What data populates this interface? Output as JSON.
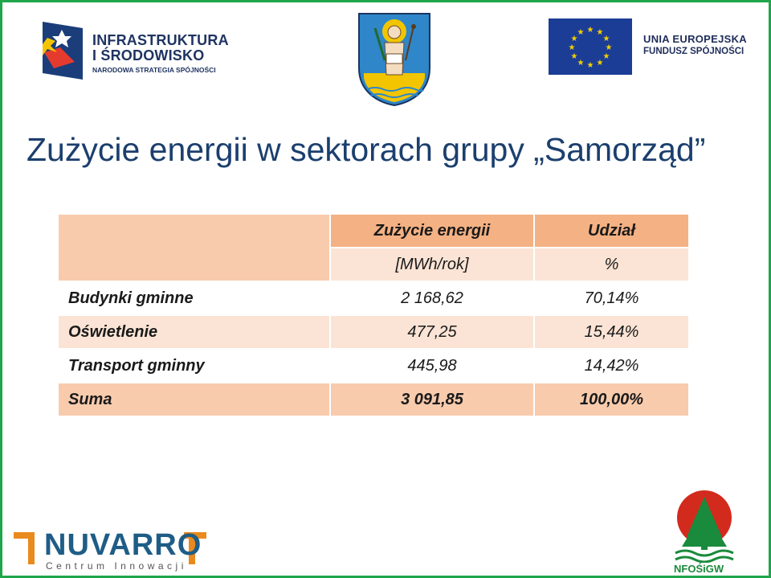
{
  "logos": {
    "infrastruktura": {
      "line1": "INFRASTRUKTURA",
      "line2": "I ŚRODOWISKO",
      "line3": "NARODOWA STRATEGIA SPÓJNOŚCI"
    },
    "eu": {
      "line1": "UNIA EUROPEJSKA",
      "line2": "FUNDUSZ SPÓJNOŚCI"
    },
    "nuvarro": {
      "word": "NUVARRO",
      "sub": "Centrum Innowacji"
    },
    "nfosigw": {
      "text": "NFOŚiGW"
    }
  },
  "slide": {
    "title": "Zużycie energii w sektorach grupy „Samorząd”"
  },
  "table": {
    "headers": {
      "energy": "Zużycie energii",
      "share": "Udział",
      "energy_unit": "[MWh/rok]",
      "share_unit": "%"
    },
    "rows": [
      {
        "label": "Budynki gminne",
        "energy": "2 168,62",
        "share": "70,14%"
      },
      {
        "label": "Oświetlenie",
        "energy": "477,25",
        "share": "15,44%"
      },
      {
        "label": "Transport gminny",
        "energy": "445,98",
        "share": "14,42%"
      }
    ],
    "total": {
      "label": "Suma",
      "energy": "3 091,85",
      "share": "100,00%"
    }
  },
  "colors": {
    "frame": "#1fa64a",
    "title": "#1b3f6e",
    "header_fill": "#f4b183",
    "light_fill": "#fbe4d5",
    "sum_fill": "#f8cbad"
  }
}
